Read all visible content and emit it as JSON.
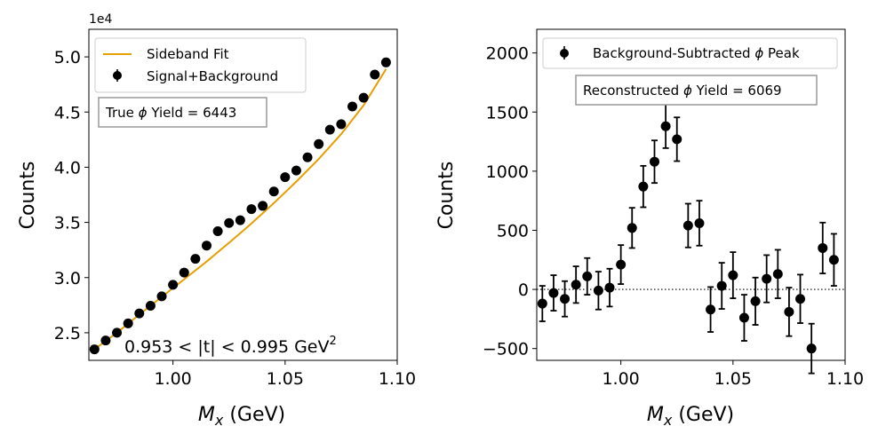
{
  "chart_data": [
    {
      "type": "scatter",
      "panel": "left",
      "xlabel_math": "M",
      "xlabel_sub": "x",
      "xlabel_unit": " (GeV)",
      "ylabel": "Counts",
      "y_offset_label": "1e4",
      "y_scale": 10000,
      "xlim": [
        0.9625,
        1.1
      ],
      "ylim": [
        22500,
        52500
      ],
      "xticks": [
        1.0,
        1.05,
        1.1
      ],
      "xtick_labels": [
        "1.00",
        "1.05",
        "1.10"
      ],
      "yticks": [
        25000,
        30000,
        35000,
        40000,
        45000,
        50000
      ],
      "ytick_labels": [
        "2.5",
        "3.0",
        "3.5",
        "4.0",
        "4.5",
        "5.0"
      ],
      "legend": {
        "placement": "top-left",
        "entries": [
          {
            "label": "Sideband Fit",
            "kind": "line",
            "color": "#E69F00"
          },
          {
            "label": "Signal+Background",
            "kind": "errorbar",
            "color": "#000000"
          }
        ]
      },
      "info_box": {
        "text_prefix": "True ",
        "symbol": "ϕ",
        "text_suffix": " Yield = 6443"
      },
      "annotation": {
        "text": "0.953 < |t| < 0.995 GeV",
        "superscript": "2"
      },
      "series": [
        {
          "name": "Signal+Background",
          "kind": "errorbar",
          "color": "#000000",
          "x": [
            0.965,
            0.97,
            0.975,
            0.98,
            0.985,
            0.99,
            0.995,
            1.0,
            1.005,
            1.01,
            1.015,
            1.02,
            1.025,
            1.03,
            1.035,
            1.04,
            1.045,
            1.05,
            1.055,
            1.06,
            1.065,
            1.07,
            1.075,
            1.08,
            1.085,
            1.09,
            1.095
          ],
          "y": [
            23500,
            24300,
            25000,
            25850,
            26750,
            27450,
            28300,
            29350,
            30450,
            31700,
            32900,
            34200,
            34950,
            35200,
            36200,
            36500,
            37800,
            39100,
            39700,
            40900,
            42100,
            43400,
            43900,
            45500,
            46300,
            48400,
            49500
          ]
        },
        {
          "name": "Sideband Fit",
          "kind": "line",
          "color": "#E69F00",
          "x": [
            0.965,
            0.975,
            0.985,
            0.995,
            1.005,
            1.015,
            1.025,
            1.035,
            1.045,
            1.055,
            1.065,
            1.075,
            1.085,
            1.095
          ],
          "y": [
            23500,
            25000,
            26650,
            28250,
            29850,
            31450,
            33150,
            34900,
            36750,
            38700,
            40750,
            43000,
            45600,
            48900
          ]
        }
      ]
    },
    {
      "type": "scatter",
      "panel": "right",
      "xlabel_math": "M",
      "xlabel_sub": "x",
      "xlabel_unit": " (GeV)",
      "ylabel": "Counts",
      "xlim": [
        0.9625,
        1.1
      ],
      "ylim": [
        -600,
        2200
      ],
      "xticks": [
        1.0,
        1.05,
        1.1
      ],
      "xtick_labels": [
        "1.00",
        "1.05",
        "1.10"
      ],
      "yticks": [
        -500,
        0,
        500,
        1000,
        1500,
        2000
      ],
      "ytick_labels": [
        "−500",
        "0",
        "500",
        "1000",
        "1500",
        "2000"
      ],
      "reference_line": {
        "y": 0,
        "style": "dotted"
      },
      "legend": {
        "placement": "top-left",
        "entries": [
          {
            "label_prefix": "Background-Subtracted ",
            "symbol": "ϕ",
            "label_suffix": " Peak",
            "kind": "errorbar",
            "color": "#000000"
          }
        ]
      },
      "info_box": {
        "text_prefix": "Reconstructed ",
        "symbol": "ϕ",
        "text_suffix": " Yield = 6069"
      },
      "series": [
        {
          "name": "Background-Subtracted Peak",
          "kind": "errorbar",
          "color": "#000000",
          "x": [
            0.965,
            0.97,
            0.975,
            0.98,
            0.985,
            0.99,
            0.995,
            1.0,
            1.005,
            1.01,
            1.015,
            1.02,
            1.025,
            1.03,
            1.035,
            1.04,
            1.045,
            1.05,
            1.055,
            1.06,
            1.065,
            1.07,
            1.075,
            1.08,
            1.085,
            1.09,
            1.095
          ],
          "y": [
            -120,
            -30,
            -80,
            40,
            110,
            -10,
            15,
            210,
            520,
            870,
            1080,
            1380,
            1270,
            540,
            560,
            -170,
            30,
            120,
            -240,
            -100,
            90,
            130,
            -190,
            -80,
            -500,
            350,
            250
          ],
          "yerr": [
            150,
            150,
            150,
            155,
            155,
            160,
            160,
            165,
            170,
            175,
            180,
            185,
            185,
            185,
            190,
            190,
            195,
            195,
            195,
            200,
            200,
            205,
            205,
            205,
            210,
            215,
            220
          ]
        }
      ]
    }
  ]
}
